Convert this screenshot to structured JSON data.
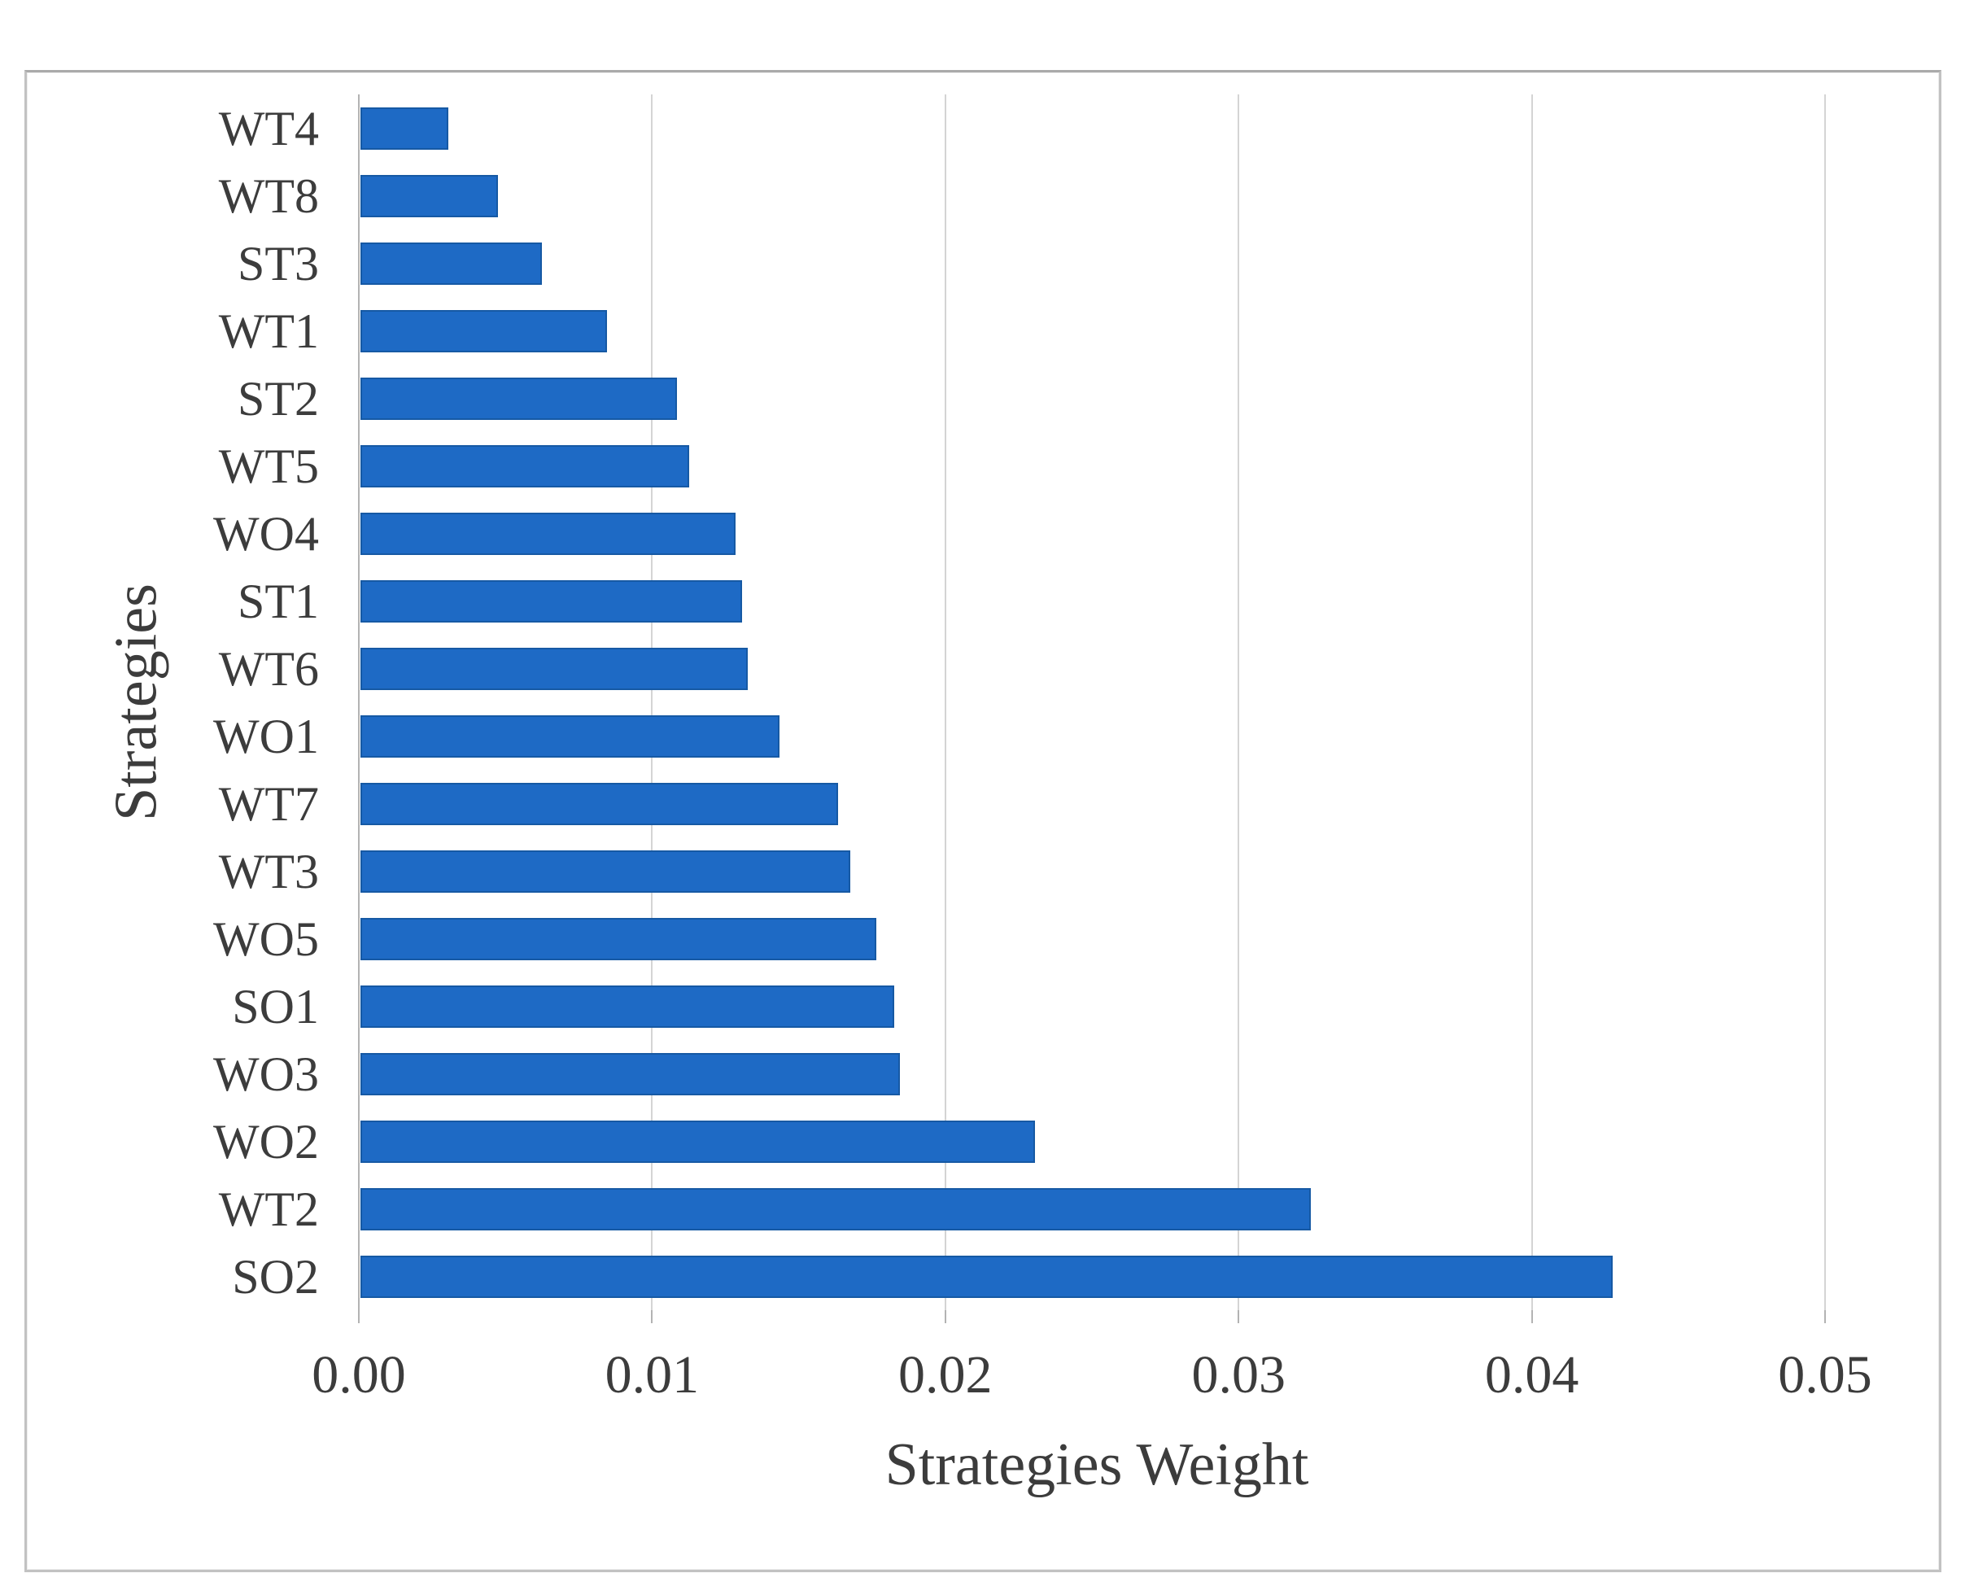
{
  "figure": {
    "x_axis_title": "Strategies Weight",
    "y_axis_title": "Strategies"
  },
  "chart_data": {
    "type": "bar",
    "orientation": "horizontal",
    "title": "",
    "xlabel": "Strategies Weight",
    "ylabel": "Strategies",
    "categories": [
      "WT4",
      "WT8",
      "ST3",
      "WT1",
      "ST2",
      "WT5",
      "WO4",
      "ST1",
      "WT6",
      "WO1",
      "WT7",
      "WT3",
      "WO5",
      "SO1",
      "WO3",
      "WO2",
      "WT2",
      "SO2"
    ],
    "values": [
      0.003,
      0.0047,
      0.0062,
      0.0084,
      0.0108,
      0.0112,
      0.0128,
      0.013,
      0.0132,
      0.0143,
      0.0163,
      0.0167,
      0.0176,
      0.0182,
      0.0184,
      0.023,
      0.0324,
      0.0427
    ],
    "xlim": [
      0,
      0.05
    ],
    "x_ticks": [
      0,
      0.01,
      0.02,
      0.03,
      0.04,
      0.05
    ],
    "x_tick_labels": [
      "0.00",
      "0.01",
      "0.02",
      "0.03",
      "0.04",
      "0.05"
    ],
    "grid": "vertical-gridlines-on",
    "legend": "none",
    "bar_color": "#1e6ac5",
    "bar_border_color": "#1659a4",
    "gridline_color": "#d4d4d4",
    "axis_line_color": "#b3b3b3",
    "text_color": "#3c3c3c"
  }
}
